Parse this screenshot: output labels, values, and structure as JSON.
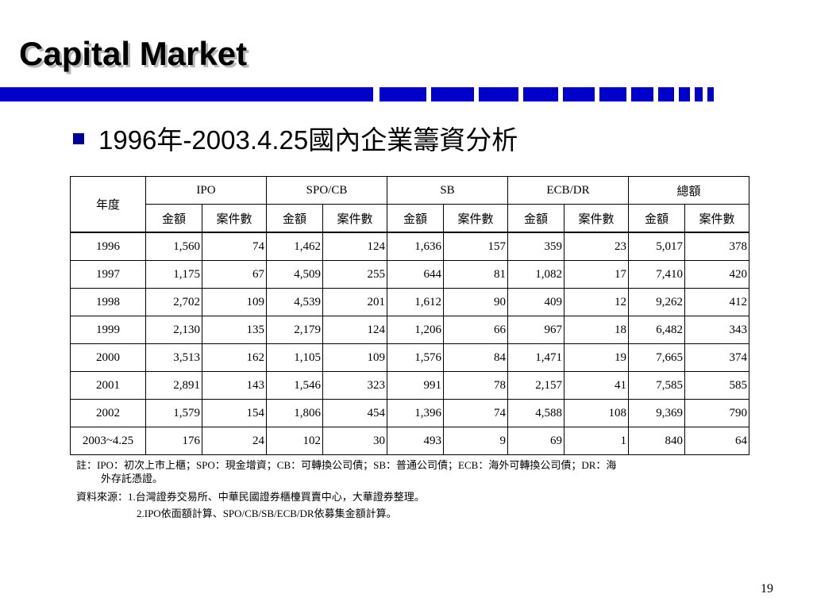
{
  "title": "Capital Market",
  "subtitle": "1996年-2003.4.25國內企業籌資分析",
  "colors": {
    "stripe": "#0000cc",
    "bullet": "#000099"
  },
  "table": {
    "year_header": "年度",
    "groups": [
      "IPO",
      "SPO/CB",
      "SB",
      "ECB/DR",
      "總額"
    ],
    "sub_headers": [
      "金額",
      "案件數",
      "金額",
      "案件數",
      "金額",
      "案件數",
      "金額",
      "案件數",
      "金額",
      "案件數"
    ],
    "rows": [
      [
        "1996",
        "1,560",
        "74",
        "1,462",
        "124",
        "1,636",
        "157",
        "359",
        "23",
        "5,017",
        "378"
      ],
      [
        "1997",
        "1,175",
        "67",
        "4,509",
        "255",
        "644",
        "81",
        "1,082",
        "17",
        "7,410",
        "420"
      ],
      [
        "1998",
        "2,702",
        "109",
        "4,539",
        "201",
        "1,612",
        "90",
        "409",
        "12",
        "9,262",
        "412"
      ],
      [
        "1999",
        "2,130",
        "135",
        "2,179",
        "124",
        "1,206",
        "66",
        "967",
        "18",
        "6,482",
        "343"
      ],
      [
        "2000",
        "3,513",
        "162",
        "1,105",
        "109",
        "1,576",
        "84",
        "1,471",
        "19",
        "7,665",
        "374"
      ],
      [
        "2001",
        "2,891",
        "143",
        "1,546",
        "323",
        "991",
        "78",
        "2,157",
        "41",
        "7,585",
        "585"
      ],
      [
        "2002",
        "1,579",
        "154",
        "1,806",
        "454",
        "1,396",
        "74",
        "4,588",
        "108",
        "9,369",
        "790"
      ],
      [
        "2003~4.25",
        "176",
        "24",
        "102",
        "30",
        "493",
        "9",
        "69",
        "1",
        "840",
        "64"
      ]
    ]
  },
  "notes": {
    "note_line1": "註：IPO：初次上市上櫃；SPO：現金增資；CB：可轉換公司債；SB：普通公司債；ECB：海外可轉換公司債；DR：海",
    "note_line2": "外存託憑證。",
    "source_line1": "資料來源：1.台灣證券交易所、中華民國證券櫃檯買賣中心，大華證券整理。",
    "source_line2": "2.IPO依面額計算、SPO/CB/SB/ECB/DR依募集金額計算。"
  },
  "page_number": "19"
}
